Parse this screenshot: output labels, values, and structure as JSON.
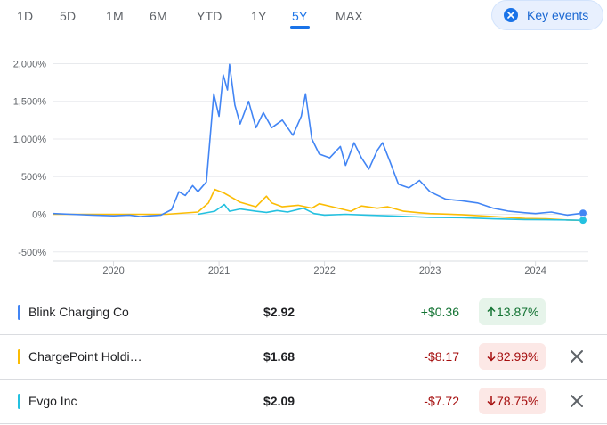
{
  "range_tabs": [
    {
      "label": "1D",
      "active": false
    },
    {
      "label": "5D",
      "active": false
    },
    {
      "label": "1M",
      "active": false
    },
    {
      "label": "6M",
      "active": false
    },
    {
      "label": "YTD",
      "active": false
    },
    {
      "label": "1Y",
      "active": false
    },
    {
      "label": "5Y",
      "active": true
    },
    {
      "label": "MAX",
      "active": false
    }
  ],
  "key_events": {
    "label": "Key events",
    "icon": "close-circle-icon"
  },
  "chart_data": {
    "type": "line",
    "y_unit": "%",
    "yticks": [
      "2,000%",
      "1,500%",
      "1,000%",
      "500%",
      "0%",
      "-500%"
    ],
    "ytick_values": [
      2000,
      1500,
      1000,
      500,
      0,
      -500
    ],
    "ylim": [
      -550,
      2100
    ],
    "xticks": [
      "2020",
      "2021",
      "2022",
      "2023",
      "2024"
    ],
    "xtick_values": [
      2020,
      2021,
      2022,
      2023,
      2024
    ],
    "xlim": [
      2019.43,
      2024.45
    ],
    "grid": true,
    "series": [
      {
        "name": "Blink Charging Co",
        "color": "#4285f4",
        "points": [
          [
            2019.43,
            10
          ],
          [
            2019.6,
            0
          ],
          [
            2019.8,
            -10
          ],
          [
            2020.0,
            -20
          ],
          [
            2020.15,
            -10
          ],
          [
            2020.25,
            -30
          ],
          [
            2020.35,
            -20
          ],
          [
            2020.45,
            -10
          ],
          [
            2020.55,
            60
          ],
          [
            2020.62,
            300
          ],
          [
            2020.68,
            250
          ],
          [
            2020.75,
            380
          ],
          [
            2020.8,
            300
          ],
          [
            2020.88,
            430
          ],
          [
            2020.95,
            1600
          ],
          [
            2021.0,
            1300
          ],
          [
            2021.04,
            1850
          ],
          [
            2021.08,
            1650
          ],
          [
            2021.1,
            1990
          ],
          [
            2021.15,
            1450
          ],
          [
            2021.2,
            1200
          ],
          [
            2021.28,
            1500
          ],
          [
            2021.35,
            1150
          ],
          [
            2021.42,
            1350
          ],
          [
            2021.5,
            1150
          ],
          [
            2021.6,
            1250
          ],
          [
            2021.7,
            1050
          ],
          [
            2021.78,
            1300
          ],
          [
            2021.82,
            1600
          ],
          [
            2021.88,
            1000
          ],
          [
            2021.95,
            800
          ],
          [
            2022.05,
            750
          ],
          [
            2022.15,
            900
          ],
          [
            2022.2,
            650
          ],
          [
            2022.28,
            950
          ],
          [
            2022.35,
            750
          ],
          [
            2022.42,
            600
          ],
          [
            2022.5,
            850
          ],
          [
            2022.55,
            950
          ],
          [
            2022.62,
            700
          ],
          [
            2022.7,
            400
          ],
          [
            2022.8,
            350
          ],
          [
            2022.9,
            450
          ],
          [
            2023.0,
            300
          ],
          [
            2023.15,
            200
          ],
          [
            2023.3,
            180
          ],
          [
            2023.45,
            150
          ],
          [
            2023.6,
            80
          ],
          [
            2023.75,
            40
          ],
          [
            2023.9,
            20
          ],
          [
            2024.0,
            10
          ],
          [
            2024.15,
            30
          ],
          [
            2024.3,
            -10
          ],
          [
            2024.45,
            15
          ]
        ]
      },
      {
        "name": "ChargePoint Holdings Inc",
        "color": "#fbbc04",
        "points": [
          [
            2019.43,
            0
          ],
          [
            2020.0,
            0
          ],
          [
            2020.5,
            0
          ],
          [
            2020.8,
            30
          ],
          [
            2020.9,
            150
          ],
          [
            2020.96,
            330
          ],
          [
            2021.05,
            280
          ],
          [
            2021.1,
            240
          ],
          [
            2021.2,
            160
          ],
          [
            2021.35,
            100
          ],
          [
            2021.45,
            240
          ],
          [
            2021.5,
            150
          ],
          [
            2021.6,
            100
          ],
          [
            2021.75,
            120
          ],
          [
            2021.88,
            80
          ],
          [
            2021.95,
            140
          ],
          [
            2022.1,
            90
          ],
          [
            2022.25,
            40
          ],
          [
            2022.35,
            110
          ],
          [
            2022.5,
            80
          ],
          [
            2022.6,
            100
          ],
          [
            2022.75,
            40
          ],
          [
            2022.9,
            20
          ],
          [
            2023.0,
            10
          ],
          [
            2023.3,
            -5
          ],
          [
            2023.6,
            -30
          ],
          [
            2023.9,
            -55
          ],
          [
            2024.1,
            -60
          ],
          [
            2024.3,
            -75
          ],
          [
            2024.45,
            -83
          ]
        ]
      },
      {
        "name": "Evgo Inc",
        "color": "#24c1e0",
        "points": [
          [
            2020.8,
            0
          ],
          [
            2020.96,
            40
          ],
          [
            2021.02,
            100
          ],
          [
            2021.05,
            130
          ],
          [
            2021.1,
            40
          ],
          [
            2021.2,
            70
          ],
          [
            2021.35,
            40
          ],
          [
            2021.45,
            25
          ],
          [
            2021.55,
            50
          ],
          [
            2021.65,
            30
          ],
          [
            2021.8,
            80
          ],
          [
            2021.9,
            10
          ],
          [
            2022.0,
            -10
          ],
          [
            2022.2,
            0
          ],
          [
            2022.4,
            -10
          ],
          [
            2022.6,
            -20
          ],
          [
            2022.8,
            -30
          ],
          [
            2023.0,
            -40
          ],
          [
            2023.3,
            -45
          ],
          [
            2023.6,
            -60
          ],
          [
            2023.9,
            -70
          ],
          [
            2024.1,
            -72
          ],
          [
            2024.3,
            -76
          ],
          [
            2024.45,
            -79
          ]
        ]
      }
    ]
  },
  "holdings": [
    {
      "name": "Blink Charging Co",
      "color": "#4285f4",
      "price": "$2.92",
      "change": "+$0.36",
      "pct": "13.87%",
      "direction": "up",
      "removable": false
    },
    {
      "name": "ChargePoint Holdi…",
      "color": "#fbbc04",
      "price": "$1.68",
      "change": "-$8.17",
      "pct": "82.99%",
      "direction": "down",
      "removable": true
    },
    {
      "name": "Evgo Inc",
      "color": "#24c1e0",
      "price": "$2.09",
      "change": "-$7.72",
      "pct": "78.75%",
      "direction": "down",
      "removable": true
    }
  ]
}
